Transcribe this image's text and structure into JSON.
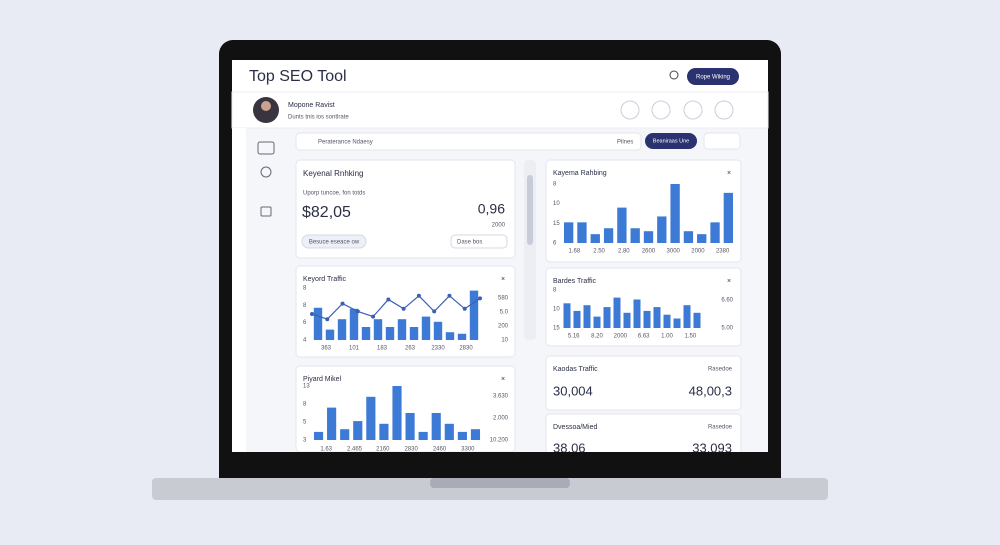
{
  "header": {
    "title": "Top SEO Tool",
    "button": "Rope Wiking"
  },
  "profile": {
    "name": "Mopone Ravist",
    "subtitle": "Dunts tnis ios sontlrate"
  },
  "toolbar": {
    "search": "Peraterance Ndaesy",
    "filter": "Pilnes",
    "button": "Beaniraas Une"
  },
  "ranking_card": {
    "title": "Keyenal Rnhking",
    "subtitle": "Uporp tuncoe, fon totds",
    "value": "$82,05",
    "value2": "0,96",
    "value2_note": "2000",
    "button": "Besuce eseace ow",
    "dropdown": "Dase bos"
  },
  "charts": [
    {
      "title": "Keyord Traffic",
      "type": "bar_line",
      "ylim": [
        0,
        100
      ],
      "values": [
        62,
        20,
        40,
        60,
        25,
        40,
        25,
        40,
        25,
        45,
        35,
        15,
        12,
        95
      ],
      "line": [
        50,
        40,
        70,
        55,
        45,
        78,
        60,
        85,
        55,
        85,
        60,
        80
      ],
      "y_labels": [
        "8",
        "8",
        "6",
        "4"
      ],
      "y2_labels": [
        "580",
        "5.0",
        "200",
        "10"
      ],
      "x_labels": [
        "363",
        "101",
        "183",
        "263",
        "2330",
        "2830"
      ]
    },
    {
      "title": "Piyard Mikel",
      "type": "bar",
      "ylim": [
        0,
        100
      ],
      "values": [
        15,
        60,
        20,
        35,
        80,
        30,
        100,
        50,
        15,
        50,
        30,
        15,
        20
      ],
      "y_labels": [
        "13",
        "8",
        "5",
        "3"
      ],
      "y2_labels": [
        "3.630",
        "2.000",
        "10.200"
      ],
      "x_labels": [
        "1.63",
        "2.465",
        "2160",
        "2830",
        "2460",
        "3300"
      ]
    },
    {
      "title": "Kayema Rahbing",
      "type": "bar",
      "ylim": [
        0,
        100
      ],
      "values": [
        35,
        35,
        15,
        25,
        60,
        25,
        20,
        45,
        100,
        20,
        15,
        35,
        85
      ],
      "y_labels": [
        "8",
        "10",
        "15",
        "6"
      ],
      "y2_labels": [],
      "x_labels": [
        "1.68",
        "2.50",
        "2.80",
        "2600",
        "3000",
        "2000",
        "2380"
      ]
    },
    {
      "title": "Bardes Traffic",
      "type": "bar",
      "ylim": [
        0,
        100
      ],
      "values": [
        65,
        45,
        60,
        30,
        55,
        80,
        40,
        75,
        45,
        55,
        35,
        25,
        60,
        40
      ],
      "y_labels": [
        "8",
        "10",
        "15"
      ],
      "y2_labels": [
        "6.60",
        "5.00"
      ],
      "x_labels": [
        "5.16",
        "8.20",
        "2000",
        "6.63",
        "1.00",
        "1.50"
      ]
    }
  ],
  "stats": [
    {
      "title": "Kaodas Traffic",
      "note": "Rasedoe",
      "value": "30,004",
      "value2": "48,00,3"
    },
    {
      "title": "Dvessoa/Mied",
      "note": "Rasedoe",
      "value": "38,06",
      "value2": "33,093"
    }
  ]
}
